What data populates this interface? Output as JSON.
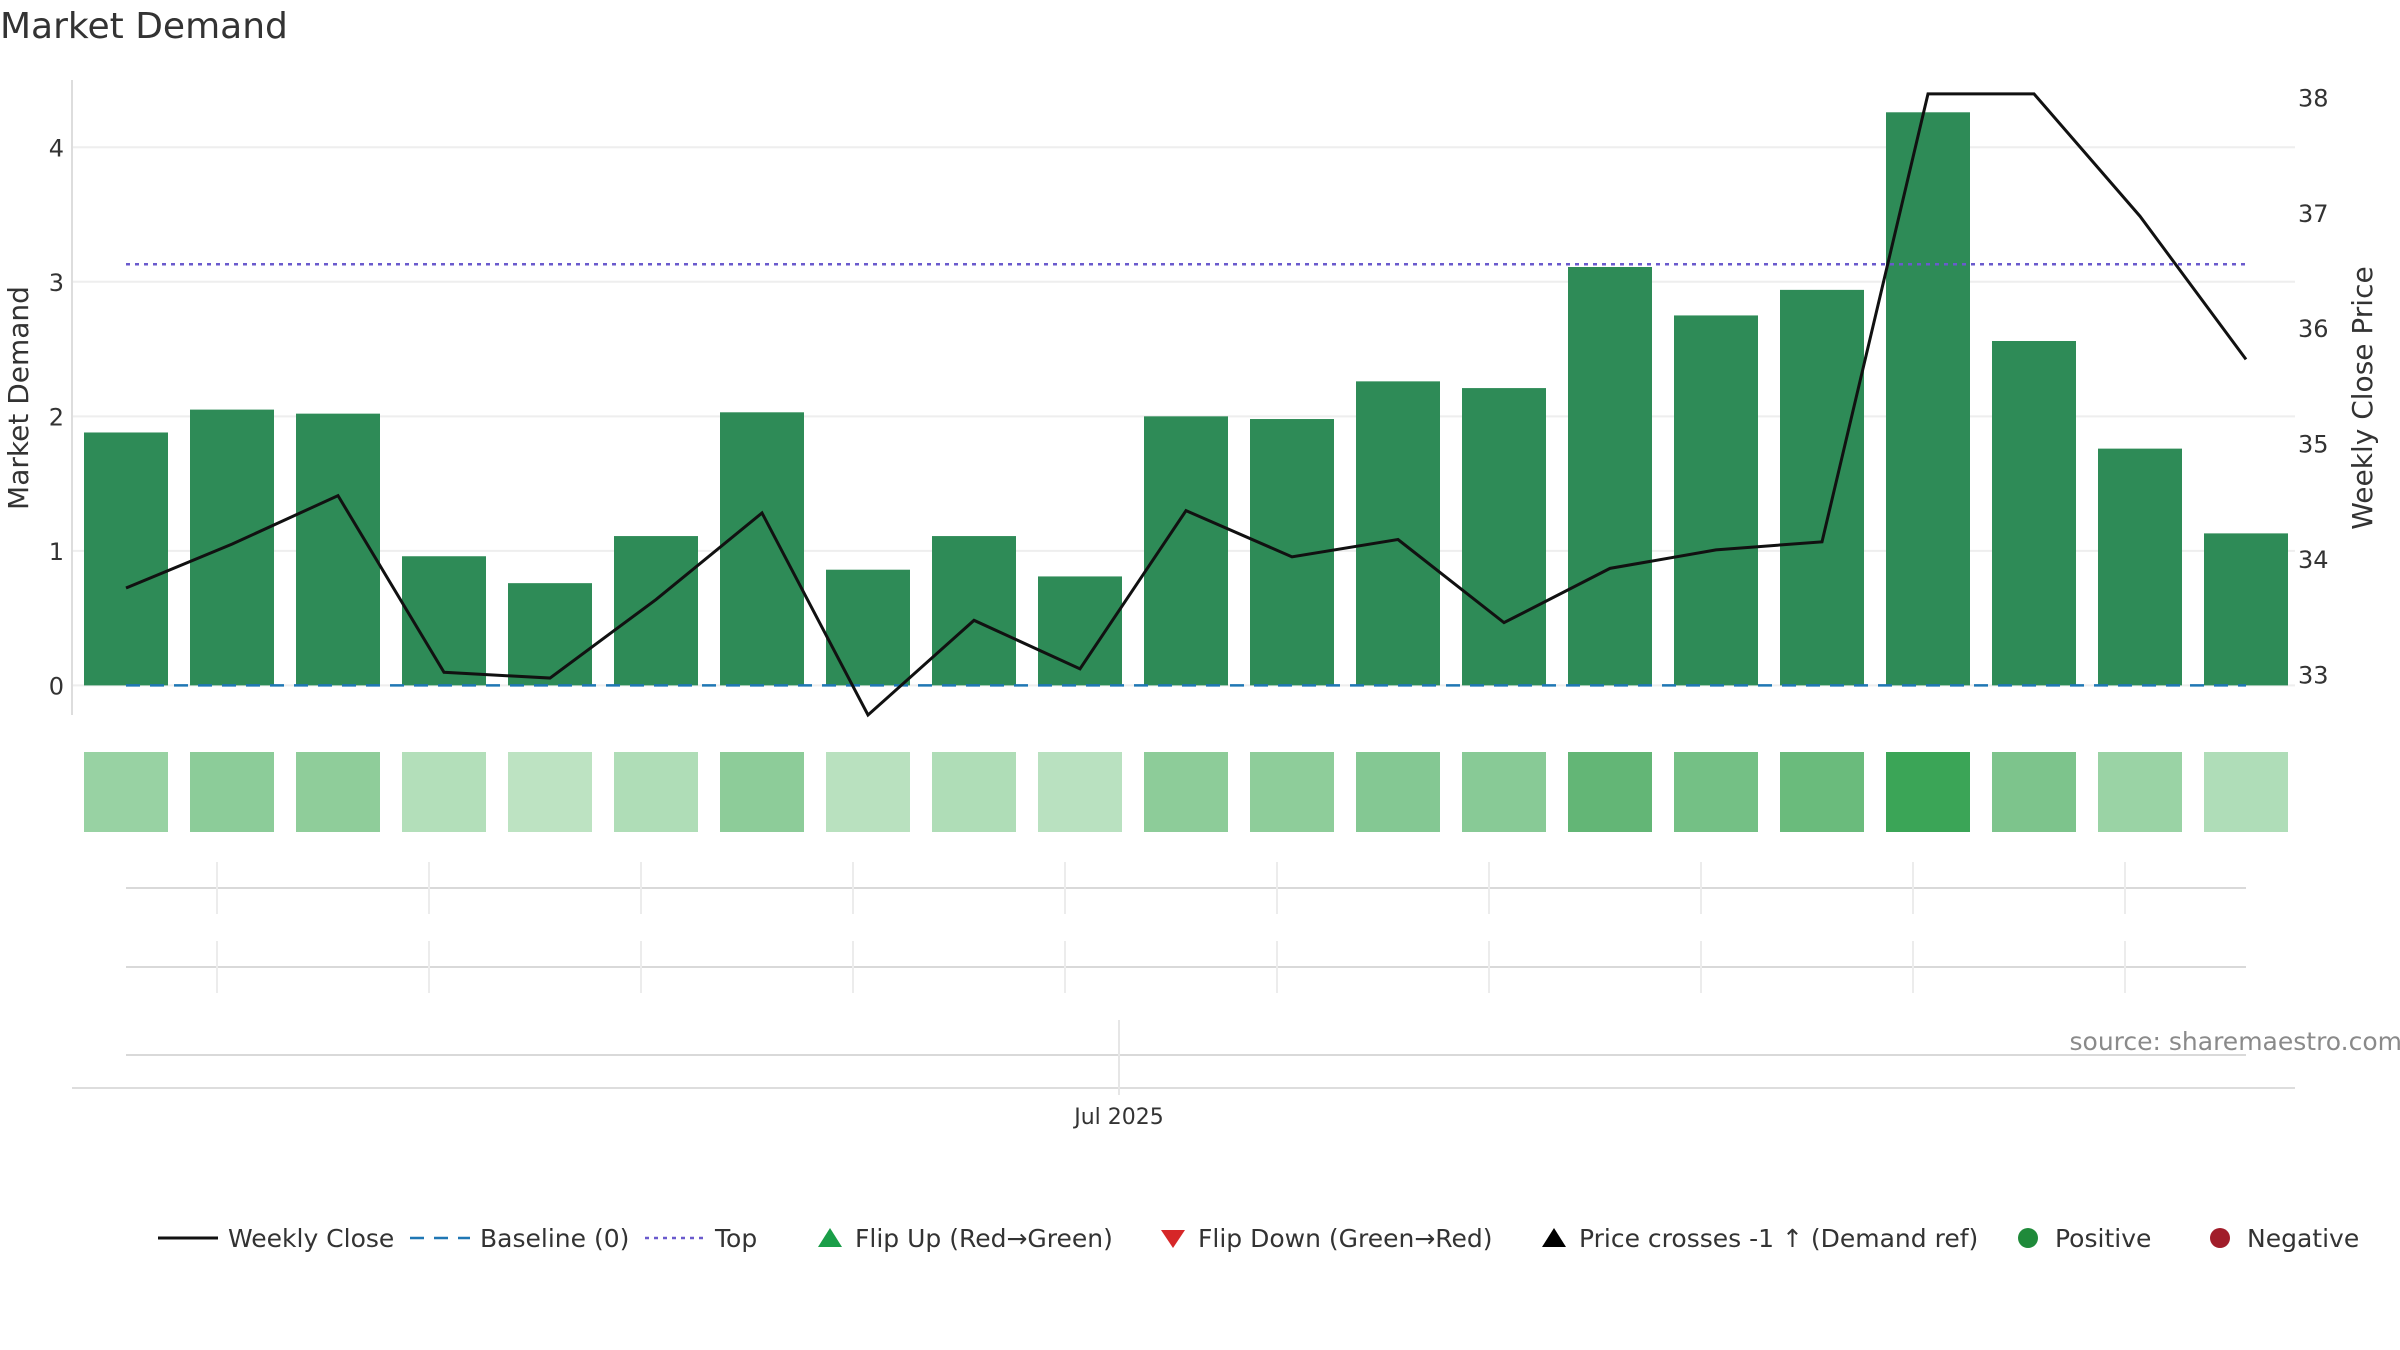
{
  "chart_data": {
    "type": "bar",
    "title": "Market Demand",
    "ylabel_left": "Market Demand",
    "ylabel_right": "Weekly Close Price",
    "source": "source: sharemaestro.com",
    "x_tick_label": "Jul 2025",
    "x_tick_index": 9,
    "ylim_left": [
      -0.22,
      4.5
    ],
    "yticks_left": [
      0,
      1,
      2,
      3,
      4
    ],
    "ylim_right": [
      32.65,
      38.15
    ],
    "yticks_right": [
      33,
      34,
      35,
      36,
      37,
      38
    ],
    "grid": true,
    "legend_position": "bottom",
    "top_line_value": 3.13,
    "baseline_value": 0,
    "series": [
      {
        "name": "Market Demand",
        "kind": "bar",
        "color": "#2e8b57",
        "values": [
          1.88,
          2.05,
          2.02,
          0.96,
          0.76,
          1.11,
          2.03,
          0.86,
          1.11,
          0.81,
          2.0,
          1.98,
          2.26,
          2.21,
          3.11,
          2.75,
          2.94,
          4.26,
          2.56,
          1.76,
          1.13
        ]
      },
      {
        "name": "Weekly Close",
        "kind": "line",
        "color": "#111111",
        "values": [
          33.75,
          34.13,
          34.55,
          33.02,
          32.97,
          33.65,
          34.4,
          32.65,
          33.47,
          33.05,
          34.42,
          34.02,
          34.17,
          33.45,
          33.92,
          34.08,
          34.15,
          38.03,
          38.03,
          36.97,
          35.73
        ]
      }
    ],
    "strip_colors": [
      "#98d2a3",
      "#8ccc99",
      "#8fcd9a",
      "#b3dfba",
      "#bde3c2",
      "#afddb7",
      "#8dcc99",
      "#b9e1bf",
      "#afddb7",
      "#b9e1c0",
      "#8dcc99",
      "#8ecd9a",
      "#84c893",
      "#88ca96",
      "#63b676",
      "#74c085",
      "#6abb7c",
      "#3ba557",
      "#7dc48c",
      "#9ad3a5",
      "#afddb8"
    ],
    "legend": [
      {
        "label": "Weekly Close",
        "marker": "solid-line",
        "color": "#111111"
      },
      {
        "label": "Baseline (0)",
        "marker": "dashed-line",
        "color": "#1f77b4"
      },
      {
        "label": "Top",
        "marker": "dotted-line",
        "color": "#6a5acd"
      },
      {
        "label": "Flip Up (Red→Green)",
        "marker": "triangle-up",
        "color": "#1a9e48"
      },
      {
        "label": "Flip Down (Green→Red)",
        "marker": "triangle-down",
        "color": "#d62728"
      },
      {
        "label": "Price crosses -1 ↑ (Demand ref)",
        "marker": "triangle-up",
        "color": "#000000"
      },
      {
        "label": "Positive",
        "marker": "circle",
        "color": "#1f8a3a"
      },
      {
        "label": "Negative",
        "marker": "circle",
        "color": "#a11d2a"
      }
    ]
  }
}
